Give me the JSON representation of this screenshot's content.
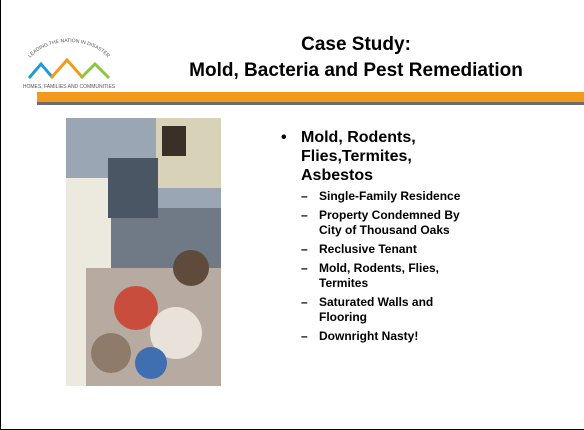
{
  "header": {
    "title_line1": "Case Study:",
    "title_line2": "Mold, Bacteria and Pest Remediation",
    "logo_arc_text": "LEADING THE NATION IN DISASTER",
    "logo_bottom_text": "HOMES, FAMILIES AND COMMUNITIES"
  },
  "content": {
    "bullet": "Mold, Rodents, Flies,Termites, Asbestos",
    "sub_items": [
      "Single-Family Residence",
      "Property Condemned By City of Thousand Oaks",
      "Reclusive Tenant",
      "Mold, Rodents, Flies, Termites",
      "Saturated Walls and Flooring",
      "Downright Nasty!"
    ]
  }
}
